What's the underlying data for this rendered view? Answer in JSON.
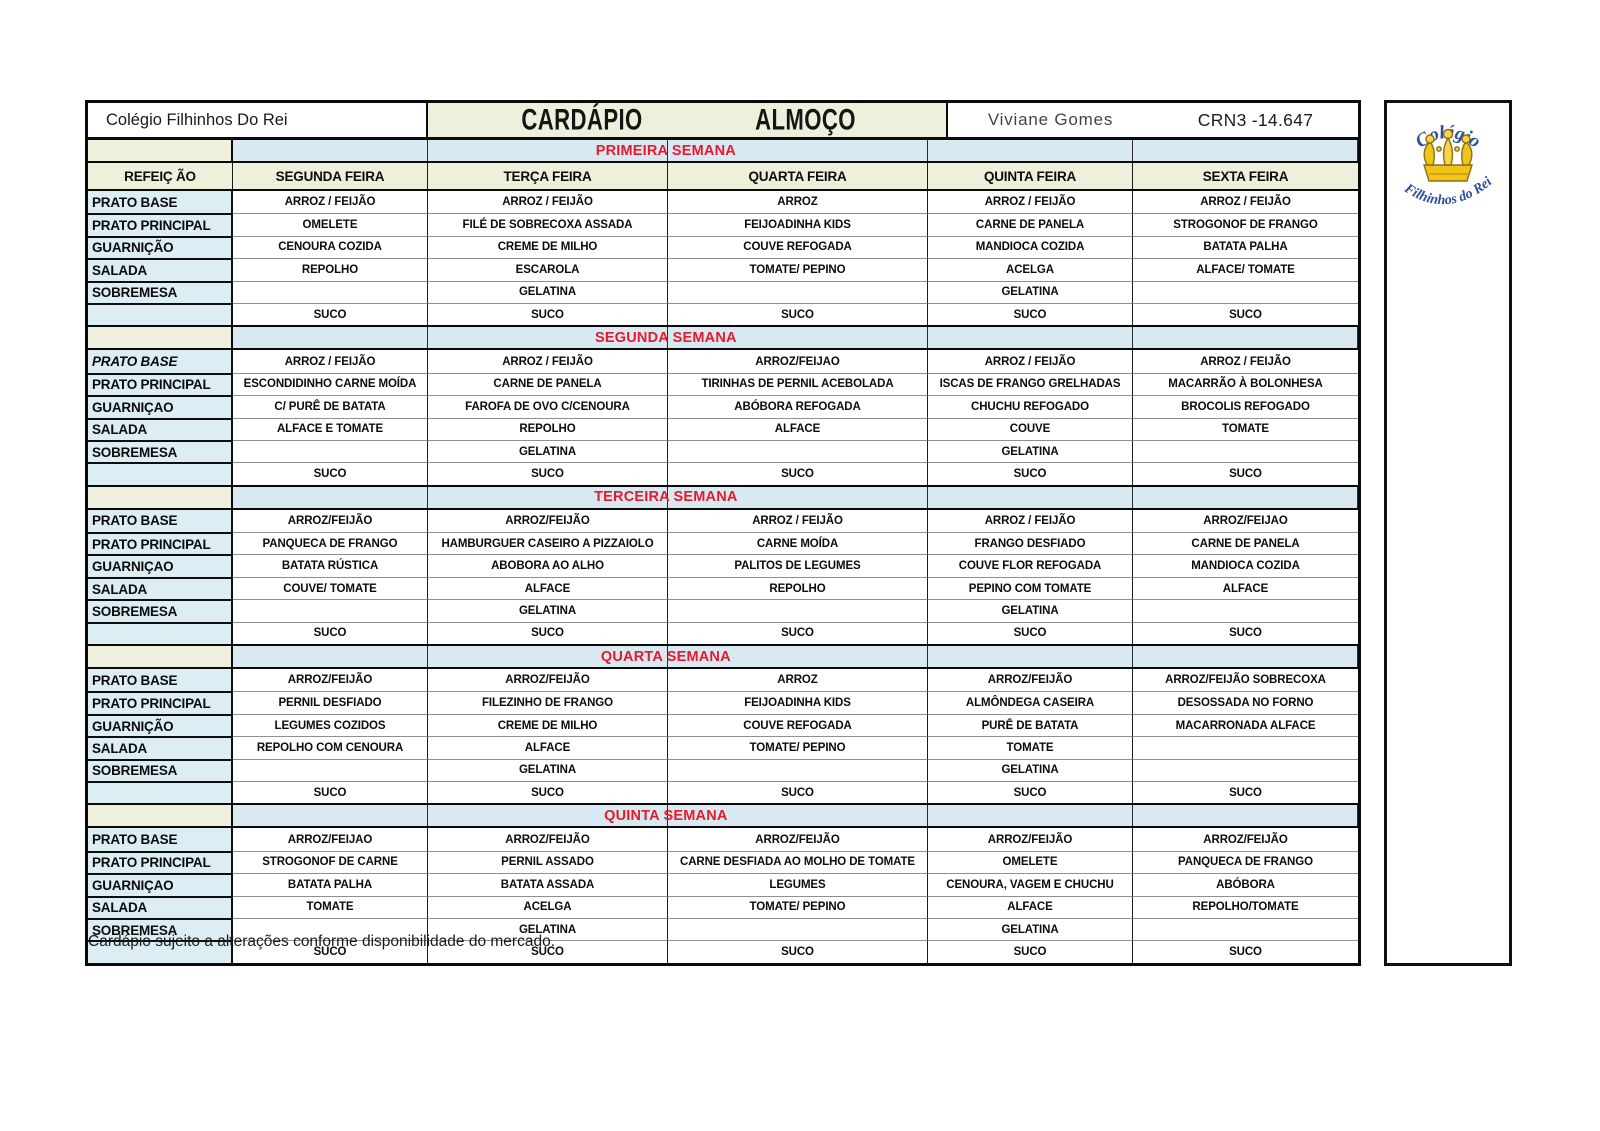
{
  "title_bar": {
    "school": "Colégio Filhinhos Do Rei",
    "doc_title_left": "CARDÁPIO",
    "doc_title_right": "ALMOÇO",
    "nutritionist": "Viviane Gomes",
    "crn": "CRN3 -14.647"
  },
  "logo": {
    "icon": "crown-icon",
    "arc_top": "Colégio",
    "arc_bottom": "Filhinhos do Rei",
    "text_color": "#2b4fa0",
    "crown_color": "#f0c419"
  },
  "colors": {
    "header_beige": "#edf0da",
    "banner_blue": "#d8e9f1",
    "label_blue": "#dcedf4",
    "week_red": "#e8192c"
  },
  "menu": {
    "columns": [
      "REFEIÇ ÃO",
      "SEGUNDA FEIRA",
      "TERÇA FEIRA",
      "QUARTA FEIRA",
      "QUINTA FEIRA",
      "SEXTA FEIRA"
    ],
    "weeks": [
      {
        "banner": "PRIMEIRA SEMANA",
        "rows": [
          {
            "label": "PRATO BASE",
            "italic": false,
            "cells": [
              "ARROZ / FEIJÃO",
              "ARROZ / FEIJÃO",
              "ARROZ",
              "ARROZ / FEIJÃO",
              "ARROZ / FEIJÃO"
            ]
          },
          {
            "label": "PRATO PRINCIPAL",
            "italic": false,
            "cells": [
              "OMELETE",
              "FILÉ DE SOBRECOXA ASSADA",
              "FEIJOADINHA KIDS",
              "CARNE DE PANELA",
              "STROGONOF DE FRANGO"
            ]
          },
          {
            "label": "GUARNIÇÃO",
            "italic": false,
            "cells": [
              "CENOURA COZIDA",
              "CREME DE MILHO",
              "COUVE REFOGADA",
              "MANDIOCA COZIDA",
              "BATATA PALHA"
            ]
          },
          {
            "label": "SALADA",
            "italic": false,
            "cells": [
              "REPOLHO",
              "ESCAROLA",
              "TOMATE/ PEPINO",
              "ACELGA",
              "ALFACE/ TOMATE"
            ]
          },
          {
            "label": "SOBREMESA",
            "italic": false,
            "cells": [
              "",
              "GELATINA",
              "",
              "GELATINA",
              ""
            ]
          },
          {
            "label": "",
            "italic": false,
            "cells": [
              "SUCO",
              "SUCO",
              "SUCO",
              "SUCO",
              "SUCO"
            ]
          }
        ]
      },
      {
        "banner": "SEGUNDA SEMANA",
        "rows": [
          {
            "label": "PRATO BASE",
            "italic": true,
            "cells": [
              "ARROZ / FEIJÃO",
              "ARROZ / FEIJÃO",
              "ARROZ/FEIJAO",
              "ARROZ / FEIJÃO",
              "ARROZ / FEIJÃO"
            ]
          },
          {
            "label": "PRATO PRINCIPAL",
            "italic": false,
            "cells": [
              "ESCONDIDINHO CARNE MOÍDA",
              "CARNE DE PANELA",
              "TIRINHAS DE PERNIL ACEBOLADA",
              "ISCAS DE FRANGO GRELHADAS",
              "MACARRÃO À BOLONHESA"
            ]
          },
          {
            "label": "GUARNIÇAO",
            "italic": false,
            "cells": [
              "C/ PURÊ DE BATATA",
              "FAROFA DE OVO C/CENOURA",
              "ABÓBORA REFOGADA",
              "CHUCHU REFOGADO",
              "BROCOLIS REFOGADO"
            ]
          },
          {
            "label": "SALADA",
            "italic": false,
            "cells": [
              "ALFACE E TOMATE",
              "REPOLHO",
              "ALFACE",
              "COUVE",
              "TOMATE"
            ]
          },
          {
            "label": "SOBREMESA",
            "italic": false,
            "cells": [
              "",
              "GELATINA",
              "",
              "GELATINA",
              ""
            ]
          },
          {
            "label": "",
            "italic": false,
            "cells": [
              "SUCO",
              "SUCO",
              "SUCO",
              "SUCO",
              "SUCO"
            ]
          }
        ]
      },
      {
        "banner": "TERCEIRA SEMANA",
        "rows": [
          {
            "label": "PRATO BASE",
            "italic": false,
            "cells": [
              "ARROZ/FEIJÃO",
              "ARROZ/FEIJÃO",
              "ARROZ / FEIJÃO",
              "ARROZ / FEIJÃO",
              "ARROZ/FEIJAO"
            ]
          },
          {
            "label": "PRATO PRINCIPAL",
            "italic": false,
            "cells": [
              "PANQUECA  DE FRANGO",
              "HAMBURGUER CASEIRO A PIZZAIOLO",
              "CARNE MOÍDA",
              "FRANGO DESFIADO",
              "CARNE DE PANELA"
            ]
          },
          {
            "label": "GUARNIÇAO",
            "italic": false,
            "cells": [
              "BATATA RÚSTICA",
              "ABOBORA AO ALHO",
              "PALITOS DE LEGUMES",
              "COUVE FLOR REFOGADA",
              "MANDIOCA COZIDA"
            ]
          },
          {
            "label": "SALADA",
            "italic": false,
            "cells": [
              "COUVE/ TOMATE",
              "ALFACE",
              "REPOLHO",
              "PEPINO COM TOMATE",
              "ALFACE"
            ]
          },
          {
            "label": "SOBREMESA",
            "italic": false,
            "cells": [
              "",
              "GELATINA",
              "",
              "GELATINA",
              ""
            ]
          },
          {
            "label": "",
            "italic": false,
            "cells": [
              "SUCO",
              "SUCO",
              "SUCO",
              "SUCO",
              "SUCO"
            ]
          }
        ]
      },
      {
        "banner": "QUARTA SEMANA",
        "rows": [
          {
            "label": "PRATO BASE",
            "italic": false,
            "cells": [
              "ARROZ/FEIJÃO",
              "ARROZ/FEIJÃO",
              "ARROZ",
              "ARROZ/FEIJÃO",
              "ARROZ/FEIJÃO SOBRECOXA"
            ]
          },
          {
            "label": "PRATO PRINCIPAL",
            "italic": false,
            "cells": [
              "PERNIL DESFIADO",
              "FILEZINHO DE FRANGO",
              "FEIJOADINHA KIDS",
              "ALMÔNDEGA CASEIRA",
              "DESOSSADA NO FORNO"
            ]
          },
          {
            "label": "GUARNIÇÃO",
            "italic": false,
            "cells": [
              "LEGUMES COZIDOS",
              "CREME DE MILHO",
              "COUVE REFOGADA",
              "PURÊ DE BATATA",
              "MACARRONADA ALFACE"
            ]
          },
          {
            "label": "SALADA",
            "italic": false,
            "cells": [
              "REPOLHO COM CENOURA",
              "ALFACE",
              "TOMATE/ PEPINO",
              "TOMATE",
              ""
            ]
          },
          {
            "label": "SOBREMESA",
            "italic": false,
            "cells": [
              "",
              "GELATINA",
              "",
              "GELATINA",
              ""
            ]
          },
          {
            "label": "",
            "italic": false,
            "cells": [
              "SUCO",
              "SUCO",
              "SUCO",
              "SUCO",
              "SUCO"
            ]
          }
        ]
      },
      {
        "banner": "QUINTA SEMANA",
        "rows": [
          {
            "label": "PRATO BASE",
            "italic": false,
            "cells": [
              "ARROZ/FEIJAO",
              "ARROZ/FEIJÃO",
              "ARROZ/FEIJÃO",
              "ARROZ/FEIJÃO",
              "ARROZ/FEIJÃO"
            ]
          },
          {
            "label": "PRATO PRINCIPAL",
            "italic": false,
            "cells": [
              "STROGONOF DE CARNE",
              "PERNIL ASSADO",
              "CARNE DESFIADA AO MOLHO DE TOMATE",
              "OMELETE",
              "PANQUECA  DE FRANGO"
            ]
          },
          {
            "label": "GUARNIÇAO",
            "italic": false,
            "cells": [
              "BATATA PALHA",
              "BATATA ASSADA",
              "LEGUMES",
              "CENOURA, VAGEM E CHUCHU",
              "ABÓBORA"
            ]
          },
          {
            "label": "SALADA",
            "italic": false,
            "cells": [
              "TOMATE",
              "ACELGA",
              "TOMATE/ PEPINO",
              "ALFACE",
              "REPOLHO/TOMATE"
            ]
          },
          {
            "label": "SOBREMESA",
            "italic": false,
            "cells": [
              "",
              "GELATINA",
              "",
              "GELATINA",
              ""
            ]
          },
          {
            "label": "",
            "italic": false,
            "cells": [
              "SUCO",
              "SUCO",
              "SUCO",
              "SUCO",
              "SUCO"
            ]
          }
        ]
      }
    ]
  },
  "footer": {
    "note": "Cardápio sujeito a alterações conforme disponibilidade do mercado."
  }
}
